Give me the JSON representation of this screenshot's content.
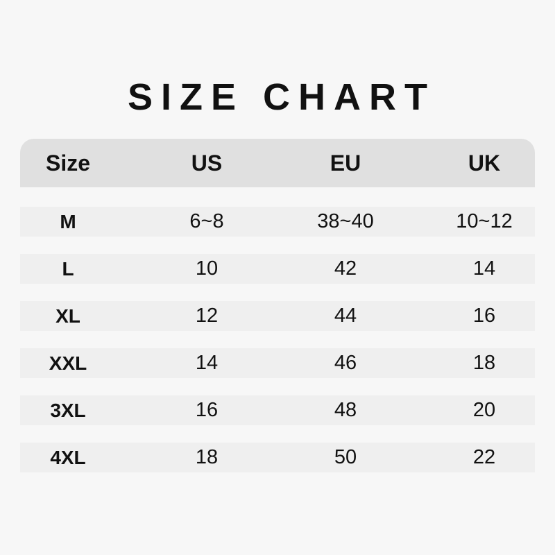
{
  "title": "SIZE CHART",
  "colors": {
    "background": "#f7f7f7",
    "header": "#e0e0e0",
    "row": "#efefef",
    "text": "#111111"
  },
  "table": {
    "headers": [
      "Size",
      "US",
      "EU",
      "UK"
    ],
    "rows": [
      [
        "M",
        "6~8",
        "38~40",
        "10~12"
      ],
      [
        "L",
        "10",
        "42",
        "14"
      ],
      [
        "XL",
        "12",
        "44",
        "16"
      ],
      [
        "XXL",
        "14",
        "46",
        "18"
      ],
      [
        "3XL",
        "16",
        "48",
        "20"
      ],
      [
        "4XL",
        "18",
        "50",
        "22"
      ]
    ]
  }
}
